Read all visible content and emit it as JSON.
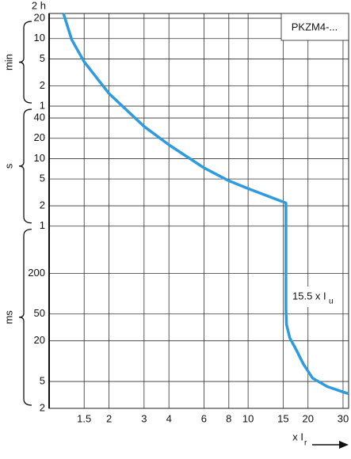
{
  "chart_data": {
    "type": "line",
    "log_x": true,
    "log_y": true,
    "grid": true,
    "y_top_label": "2 h",
    "x_label": {
      "text": "x I",
      "subscript": "r"
    },
    "annotation": {
      "text": "15.5 x I",
      "subscript": "u"
    },
    "x": [
      1.18,
      1.3,
      1.5,
      2,
      3,
      4,
      6,
      8,
      10,
      15.5,
      15.5,
      15.6,
      16.2,
      17.3,
      19,
      21.1,
      25,
      30,
      32
    ],
    "series": [
      {
        "name": "PKZM4-...",
        "color": "#2e9be0",
        "values": [
          1413,
          575,
          272,
          92,
          30,
          16,
          7.3,
          4.7,
          3.6,
          2.2,
          0.06,
          0.035,
          0.022,
          0.0155,
          0.009,
          0.0056,
          0.0042,
          0.0035,
          0.0033
        ]
      }
    ],
    "xlim": [
      1,
      32
    ],
    "xticks": [
      1.5,
      2,
      3,
      4,
      6,
      8,
      10,
      15,
      20,
      30
    ],
    "ylim": [
      0.002,
      1413
    ],
    "yticks": [
      {
        "value": 1200,
        "label": "20"
      },
      {
        "value": 600,
        "label": "10"
      },
      {
        "value": 300,
        "label": "5"
      },
      {
        "value": 120,
        "label": "2"
      },
      {
        "value": 60,
        "label": "1"
      },
      40,
      20,
      10,
      5,
      2,
      1,
      {
        "value": 0.2,
        "label": "200"
      },
      {
        "value": 0.05,
        "label": "50"
      },
      {
        "value": 0.02,
        "label": "20"
      },
      {
        "value": 0.005,
        "label": "5"
      },
      {
        "value": 0.002,
        "label": "2"
      }
    ],
    "y_groups": [
      {
        "label": "min",
        "range": [
          60,
          1200
        ]
      },
      {
        "label": "s",
        "range": [
          1,
          60
        ]
      },
      {
        "label": "ms",
        "range": [
          0.002,
          1
        ]
      }
    ]
  }
}
